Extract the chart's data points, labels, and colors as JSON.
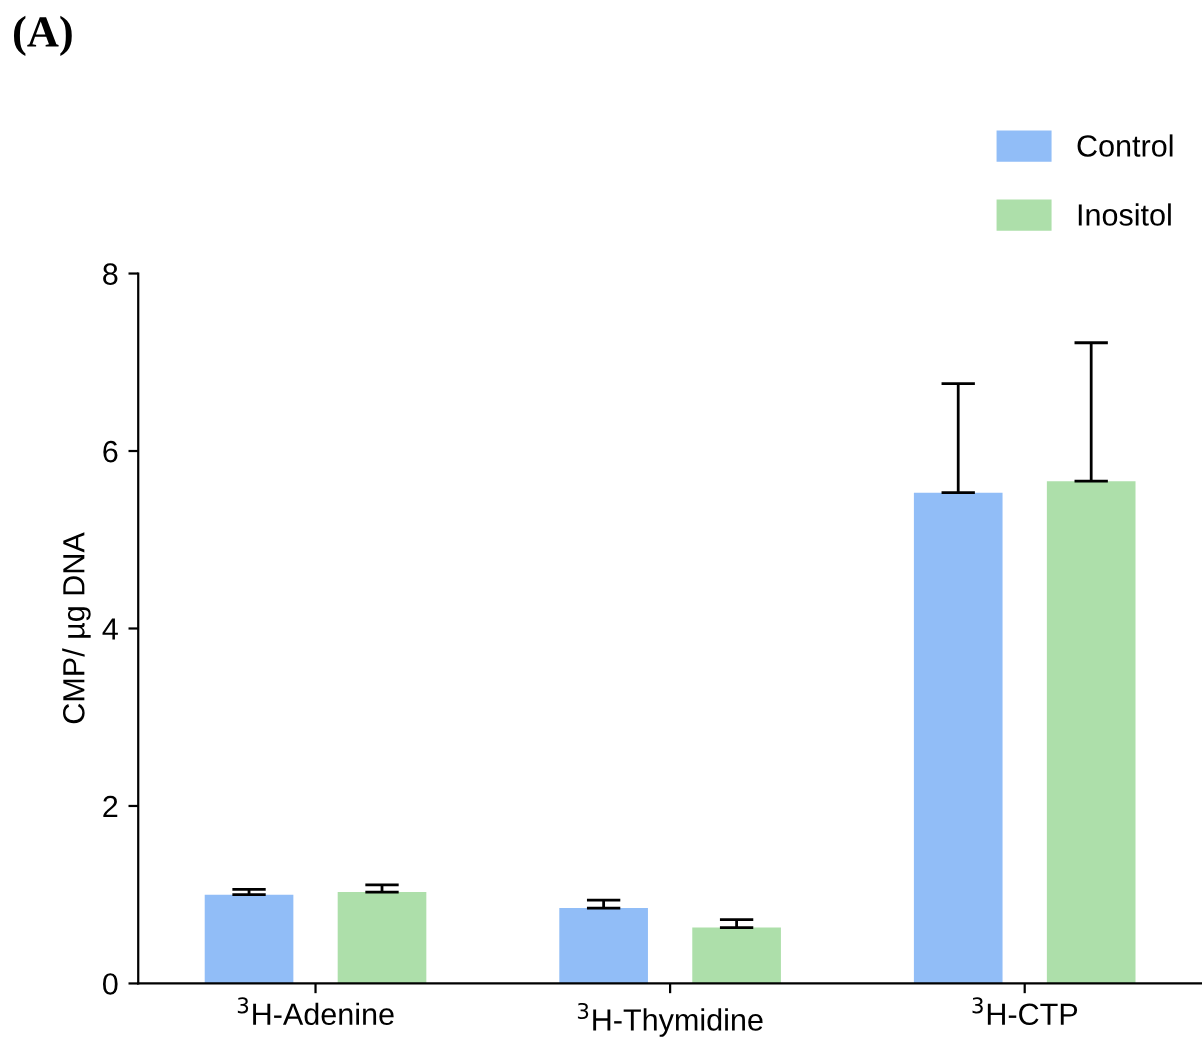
{
  "chart_data": {
    "type": "bar",
    "title": "(A)",
    "ylabel": "CMP/ µg DNA",
    "categories": [
      "$^{3}$H-Adenine",
      "$^{3}$H-Thymidine",
      "$^{3}$H-CTP"
    ],
    "series": [
      {
        "name": "Control",
        "color": "#91bdf7",
        "values": [
          1.0,
          0.85,
          5.53
        ],
        "errors": [
          [
            1.0,
            1.06
          ],
          [
            0.85,
            0.94
          ],
          [
            5.53,
            6.76
          ]
        ]
      },
      {
        "name": "Inositol",
        "color": "#addfaa",
        "values": [
          1.03,
          0.63,
          5.66
        ],
        "errors": [
          [
            1.03,
            1.11
          ],
          [
            0.63,
            0.72
          ],
          [
            5.66,
            7.22
          ]
        ]
      }
    ],
    "ylim": [
      0,
      8
    ],
    "yticks": [
      0,
      2,
      4,
      6,
      8
    ],
    "grid": false,
    "legend": "top right"
  }
}
